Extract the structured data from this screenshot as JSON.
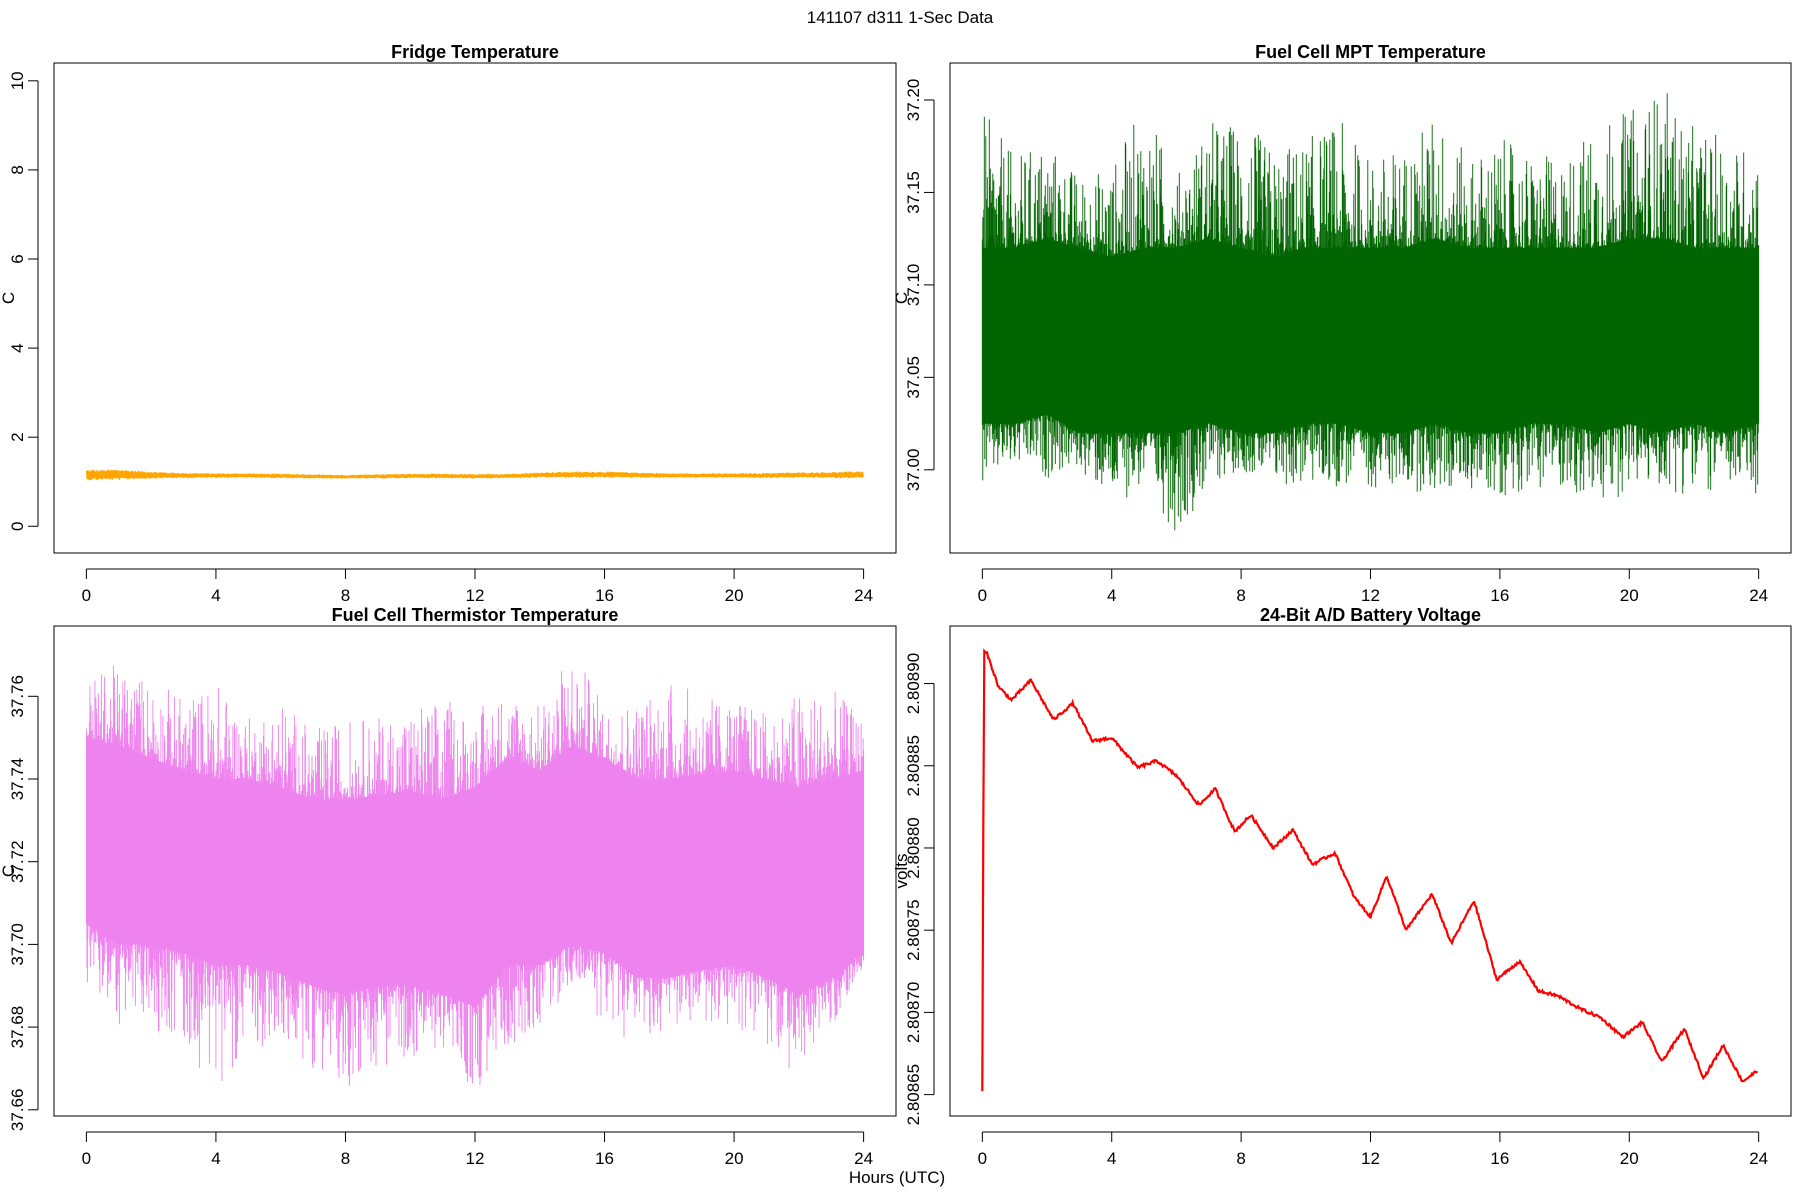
{
  "figure": {
    "title": "141107   d311   1-Sec Data",
    "xlabel": "Hours (UTC)"
  },
  "chart_data": [
    {
      "id": "fridge",
      "type": "line",
      "title": "Fridge Temperature",
      "ylabel": "C",
      "color": "#FFA500",
      "xlim": [
        -1,
        25
      ],
      "ylim": [
        -0.6,
        10.4
      ],
      "xticks": [
        0,
        4,
        8,
        12,
        16,
        20,
        24
      ],
      "xtick_labels": [
        "0",
        "4",
        "8",
        "12",
        "16",
        "20",
        "24"
      ],
      "yticks": [
        0,
        2,
        4,
        6,
        8,
        10
      ],
      "ytick_labels": [
        "0",
        "2",
        "4",
        "6",
        "8",
        "10"
      ],
      "x": [
        0,
        1,
        2,
        3,
        4,
        5,
        6,
        7,
        8,
        9,
        10,
        11,
        12,
        13,
        14,
        15,
        16,
        17,
        18,
        19,
        20,
        21,
        22,
        23,
        24
      ],
      "center": [
        1.15,
        1.16,
        1.15,
        1.14,
        1.14,
        1.14,
        1.13,
        1.12,
        1.11,
        1.12,
        1.13,
        1.13,
        1.12,
        1.13,
        1.15,
        1.16,
        1.16,
        1.15,
        1.14,
        1.14,
        1.14,
        1.14,
        1.15,
        1.15,
        1.16
      ],
      "amplitude": [
        0.12,
        0.12,
        0.08,
        0.06,
        0.05,
        0.05,
        0.05,
        0.05,
        0.04,
        0.05,
        0.05,
        0.05,
        0.05,
        0.05,
        0.06,
        0.07,
        0.07,
        0.06,
        0.05,
        0.05,
        0.05,
        0.06,
        0.06,
        0.07,
        0.08
      ]
    },
    {
      "id": "mpt",
      "type": "line",
      "title": "Fuel Cell MPT Temperature",
      "ylabel": "C",
      "color": "#006400",
      "xlim": [
        -1,
        25
      ],
      "ylim": [
        36.955,
        37.22
      ],
      "xticks": [
        0,
        4,
        8,
        12,
        16,
        20,
        24
      ],
      "xtick_labels": [
        "0",
        "4",
        "8",
        "12",
        "16",
        "20",
        "24"
      ],
      "yticks": [
        37.0,
        37.05,
        37.1,
        37.15,
        37.2
      ],
      "ytick_labels": [
        "37.00",
        "37.05",
        "37.10",
        "37.15",
        "37.20"
      ],
      "x": [
        0,
        1,
        2,
        3,
        4,
        5,
        6,
        7,
        8,
        9,
        10,
        11,
        12,
        13,
        14,
        15,
        16,
        17,
        18,
        19,
        20,
        21,
        22,
        23,
        24
      ],
      "center": [
        37.07,
        37.07,
        37.075,
        37.07,
        37.068,
        37.07,
        37.068,
        37.072,
        37.07,
        37.068,
        37.07,
        37.07,
        37.07,
        37.068,
        37.07,
        37.07,
        37.068,
        37.07,
        37.07,
        37.072,
        37.07,
        37.072,
        37.07,
        37.07,
        37.07
      ],
      "band_low": [
        37.025,
        37.025,
        37.03,
        37.02,
        37.02,
        37.02,
        37.02,
        37.025,
        37.02,
        37.02,
        37.025,
        37.025,
        37.02,
        37.02,
        37.025,
        37.02,
        37.02,
        37.025,
        37.025,
        37.02,
        37.025,
        37.02,
        37.025,
        37.02,
        37.025
      ],
      "band_high": [
        37.12,
        37.12,
        37.125,
        37.12,
        37.115,
        37.12,
        37.12,
        37.125,
        37.12,
        37.115,
        37.12,
        37.12,
        37.12,
        37.12,
        37.125,
        37.12,
        37.12,
        37.12,
        37.12,
        37.12,
        37.125,
        37.125,
        37.12,
        37.12,
        37.12
      ],
      "max_env": [
        37.195,
        37.17,
        37.18,
        37.16,
        37.165,
        37.2,
        37.16,
        37.19,
        37.19,
        37.175,
        37.18,
        37.19,
        37.17,
        37.175,
        37.195,
        37.17,
        37.18,
        37.17,
        37.17,
        37.19,
        37.195,
        37.21,
        37.185,
        37.18,
        37.175
      ],
      "min_env": [
        36.99,
        37.0,
        36.995,
        37.0,
        36.98,
        36.99,
        36.965,
        36.99,
        37.0,
        36.99,
        36.99,
        36.99,
        36.99,
        36.99,
        36.985,
        36.99,
        36.985,
        36.99,
        36.99,
        36.975,
        36.99,
        36.99,
        36.985,
        36.99,
        36.985
      ]
    },
    {
      "id": "thermistor",
      "type": "line",
      "title": "Fuel Cell Thermistor Temperature",
      "ylabel": "C",
      "color": "#EE82EE",
      "xlim": [
        -1,
        25
      ],
      "ylim": [
        37.6585,
        37.777
      ],
      "xticks": [
        0,
        4,
        8,
        12,
        16,
        20,
        24
      ],
      "xtick_labels": [
        "0",
        "4",
        "8",
        "12",
        "16",
        "20",
        "24"
      ],
      "yticks": [
        37.66,
        37.68,
        37.7,
        37.72,
        37.74,
        37.76
      ],
      "ytick_labels": [
        "37.66",
        "37.68",
        "37.70",
        "37.72",
        "37.74",
        "37.76"
      ],
      "x": [
        0,
        1,
        2,
        3,
        4,
        5,
        6,
        7,
        8,
        9,
        10,
        11,
        12,
        13,
        14,
        15,
        16,
        17,
        18,
        19,
        20,
        21,
        22,
        23,
        24
      ],
      "center": [
        37.728,
        37.725,
        37.722,
        37.72,
        37.718,
        37.718,
        37.716,
        37.714,
        37.712,
        37.713,
        37.714,
        37.713,
        37.715,
        37.72,
        37.718,
        37.724,
        37.722,
        37.716,
        37.716,
        37.717,
        37.718,
        37.716,
        37.714,
        37.716,
        37.72
      ],
      "band_low": [
        37.705,
        37.7,
        37.7,
        37.698,
        37.695,
        37.695,
        37.693,
        37.69,
        37.688,
        37.69,
        37.69,
        37.688,
        37.685,
        37.695,
        37.695,
        37.7,
        37.698,
        37.692,
        37.692,
        37.694,
        37.695,
        37.692,
        37.688,
        37.692,
        37.698
      ],
      "band_high": [
        37.75,
        37.748,
        37.745,
        37.742,
        37.74,
        37.74,
        37.738,
        37.735,
        37.735,
        37.736,
        37.737,
        37.735,
        37.738,
        37.745,
        37.742,
        37.748,
        37.745,
        37.74,
        37.74,
        37.741,
        37.742,
        37.74,
        37.738,
        37.74,
        37.742
      ],
      "max_env": [
        37.765,
        37.768,
        37.765,
        37.76,
        37.764,
        37.755,
        37.76,
        37.752,
        37.755,
        37.755,
        37.758,
        37.76,
        37.757,
        37.762,
        37.758,
        37.772,
        37.758,
        37.76,
        37.765,
        37.76,
        37.76,
        37.756,
        37.762,
        37.762,
        37.755
      ],
      "min_env": [
        37.69,
        37.68,
        37.68,
        37.675,
        37.665,
        37.675,
        37.675,
        37.67,
        37.665,
        37.67,
        37.672,
        37.675,
        37.662,
        37.675,
        37.68,
        37.69,
        37.68,
        37.675,
        37.68,
        37.68,
        37.68,
        37.675,
        37.668,
        37.68,
        37.69
      ]
    },
    {
      "id": "battery",
      "type": "line",
      "title": "24-Bit A/D Battery Voltage",
      "ylabel": "volts",
      "color": "#FF0000",
      "xlim": [
        -1,
        25
      ],
      "ylim": [
        2.808637,
        2.808935
      ],
      "xticks": [
        0,
        4,
        8,
        12,
        16,
        20,
        24
      ],
      "xtick_labels": [
        "0",
        "4",
        "8",
        "12",
        "16",
        "20",
        "24"
      ],
      "yticks": [
        2.80865,
        2.8087,
        2.80875,
        2.8088,
        2.80885,
        2.8089
      ],
      "ytick_labels": [
        "2.80865",
        "2.80870",
        "2.80875",
        "2.80880",
        "2.80885",
        "2.80890"
      ],
      "x": [
        0,
        0.05,
        0.15,
        0.5,
        0.9,
        1.5,
        2.2,
        2.8,
        3.4,
        4.0,
        4.8,
        5.4,
        6.0,
        6.7,
        7.2,
        7.8,
        8.3,
        9.0,
        9.6,
        10.2,
        10.9,
        11.5,
        12.0,
        12.5,
        13.1,
        13.9,
        14.5,
        15.2,
        15.9,
        16.6,
        17.2,
        17.8,
        18.5,
        19.1,
        19.8,
        20.4,
        21.0,
        21.7,
        22.3,
        22.9,
        23.5,
        24.0
      ],
      "y": [
        2.808652,
        2.80892,
        2.808918,
        2.808898,
        2.80889,
        2.808902,
        2.808878,
        2.808888,
        2.808865,
        2.808867,
        2.808849,
        2.808853,
        2.808844,
        2.808826,
        2.808836,
        2.80881,
        2.80882,
        2.8088,
        2.808811,
        2.80879,
        2.808797,
        2.80877,
        2.808758,
        2.808783,
        2.80875,
        2.808772,
        2.808742,
        2.808768,
        2.80872,
        2.808731,
        2.808713,
        2.80871,
        2.808702,
        2.808697,
        2.808685,
        2.808694,
        2.80867,
        2.80869,
        2.80866,
        2.80868,
        2.808658,
        2.808665
      ]
    }
  ]
}
